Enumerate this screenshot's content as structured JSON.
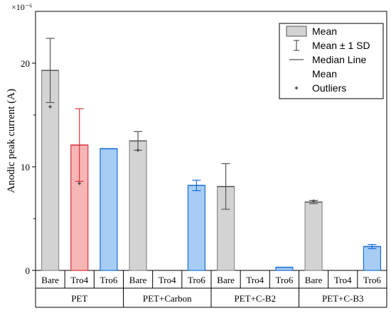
{
  "chart_data": {
    "type": "bar",
    "ylabel": "Anodic peak current (A)",
    "y_scale_label": "×10⁻⁶",
    "ylim": [
      0,
      25
    ],
    "yticks": [
      0,
      10,
      20
    ],
    "groups": [
      {
        "label": "PET",
        "start": 0,
        "count": 3
      },
      {
        "label": "PET+Carbon",
        "start": 3,
        "count": 3
      },
      {
        "label": "PET+C-B2",
        "start": 6,
        "count": 3
      },
      {
        "label": "PET+C-B3",
        "start": 9,
        "count": 3
      }
    ],
    "bars": [
      {
        "category": "Bare",
        "value": 19.3,
        "sd": 3.1,
        "median": 19.3,
        "outliers": [
          15.8
        ],
        "fill": "#d3d3d3",
        "stroke": "#8c8c8c"
      },
      {
        "category": "Tro4",
        "value": 12.1,
        "sd": 3.5,
        "median": 12.1,
        "outliers": [
          8.4
        ],
        "fill": "#f7b6b6",
        "stroke": "#d9303a"
      },
      {
        "category": "Tro6",
        "value": 11.75,
        "sd": 0,
        "median": 11.75,
        "outliers": [],
        "fill": "#a7cdf5",
        "stroke": "#1a6dd4"
      },
      {
        "category": "Bare",
        "value": 12.5,
        "sd": 0.9,
        "median": 12.5,
        "outliers": [
          11.6
        ],
        "fill": "#d3d3d3",
        "stroke": "#8c8c8c"
      },
      {
        "category": "Tro4",
        "value": null,
        "sd": 0,
        "median": null,
        "outliers": [],
        "fill": "#f7b6b6",
        "stroke": "#d9303a"
      },
      {
        "category": "Tro6",
        "value": 8.2,
        "sd": 0.5,
        "median": 8.2,
        "outliers": [],
        "fill": "#a7cdf5",
        "stroke": "#1a6dd4"
      },
      {
        "category": "Bare",
        "value": 8.1,
        "sd": 2.2,
        "median": 8.1,
        "outliers": [],
        "fill": "#d3d3d3",
        "stroke": "#8c8c8c"
      },
      {
        "category": "Tro4",
        "value": null,
        "sd": 0,
        "median": null,
        "outliers": [],
        "fill": "#f7b6b6",
        "stroke": "#d9303a"
      },
      {
        "category": "Tro6",
        "value": 0.3,
        "sd": 0,
        "median": 0.3,
        "outliers": [],
        "fill": "#a7cdf5",
        "stroke": "#1a6dd4"
      },
      {
        "category": "Bare",
        "value": 6.6,
        "sd": 0.15,
        "median": 6.6,
        "outliers": [
          6.7
        ],
        "fill": "#d3d3d3",
        "stroke": "#8c8c8c"
      },
      {
        "category": "Tro4",
        "value": null,
        "sd": 0,
        "median": null,
        "outliers": [],
        "fill": "#f7b6b6",
        "stroke": "#d9303a"
      },
      {
        "category": "Tro6",
        "value": 2.3,
        "sd": 0.2,
        "median": 2.3,
        "outliers": [],
        "fill": "#a7cdf5",
        "stroke": "#1a6dd4"
      }
    ],
    "legend": {
      "position": "top-right",
      "entries": [
        {
          "label": "Mean",
          "kind": "box"
        },
        {
          "label": "Mean ± 1 SD",
          "kind": "errorbar"
        },
        {
          "label": "Median Line",
          "kind": "line"
        },
        {
          "label": "Mean",
          "kind": "blank"
        },
        {
          "label": "Outliers",
          "kind": "dot"
        }
      ]
    },
    "grid": false
  }
}
